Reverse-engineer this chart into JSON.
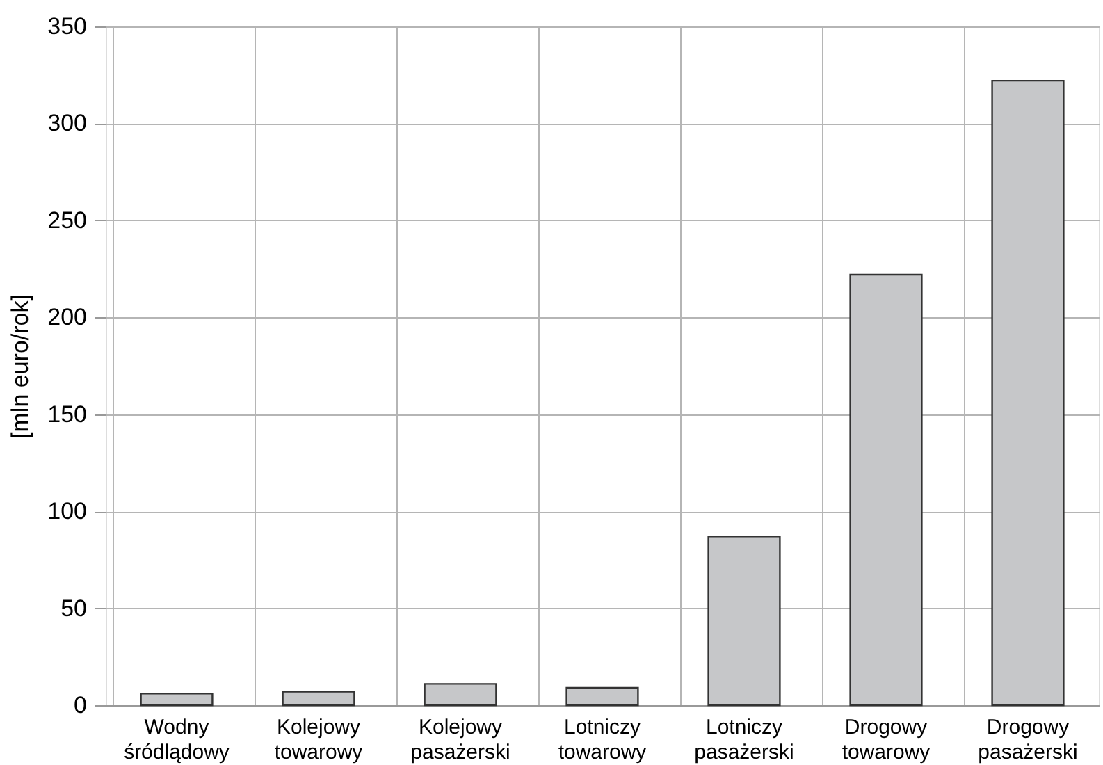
{
  "chart_data": {
    "type": "bar",
    "categories": [
      "Wodny śródlądowy",
      "Kolejowy towarowy",
      "Kolejowy pasażerski",
      "Lotniczy towarowy",
      "Lotniczy pasażerski",
      "Drogowy towarowy",
      "Drogowy pasażerski"
    ],
    "values": [
      6,
      7,
      11,
      9,
      87,
      222,
      322
    ],
    "color": "#c6c7c9",
    "ylabel": "[mln euro/rok]",
    "ylim": [
      0,
      350
    ],
    "yticks": [
      0,
      50,
      100,
      150,
      200,
      250,
      300,
      350
    ],
    "grid": true
  }
}
